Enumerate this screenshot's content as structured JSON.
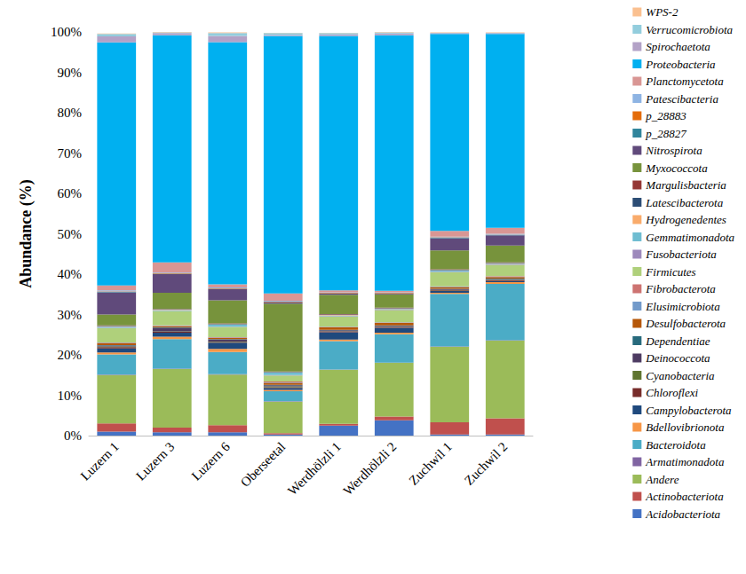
{
  "chart_data": {
    "type": "bar",
    "stacked": true,
    "grid": false,
    "legend": "right",
    "y_label": "Abundance (%)",
    "categories": [
      "Luzern 1",
      "Luzern 3",
      "Luzern 6",
      "Oberseetal",
      "Werdhölzli 1",
      "Werdhölzli 2",
      "Zuchwil 1",
      "Zuchwil 2"
    ],
    "ylim": [
      0,
      100
    ],
    "yticks": [
      {
        "value": 0,
        "label": "0%"
      },
      {
        "value": 10,
        "label": "10%"
      },
      {
        "value": 20,
        "label": "20%"
      },
      {
        "value": 30,
        "label": "30%"
      },
      {
        "value": 40,
        "label": "40%"
      },
      {
        "value": 50,
        "label": "50%"
      },
      {
        "value": 60,
        "label": "60%"
      },
      {
        "value": 70,
        "label": "70%"
      },
      {
        "value": 80,
        "label": "80%"
      },
      {
        "value": 90,
        "label": "90%"
      },
      {
        "value": 100,
        "label": "100%"
      }
    ],
    "series": [
      {
        "name": "Acidobacteriota",
        "color": "#4472C4",
        "values": [
          1.0,
          0.8,
          0.8,
          0.3,
          2.5,
          3.8,
          0.3,
          0.3
        ]
      },
      {
        "name": "Actinobacteriota",
        "color": "#C0504D",
        "values": [
          2.0,
          1.2,
          1.8,
          0.3,
          0.4,
          0.9,
          3.0,
          4.0
        ]
      },
      {
        "name": "Andere",
        "color": "#9BBB59",
        "values": [
          12.0,
          14.5,
          12.5,
          7.8,
          13.4,
          13.3,
          18.7,
          19.2
        ]
      },
      {
        "name": "Armatimonadota",
        "color": "#8064A2",
        "values": [
          0.1,
          0.1,
          0.1,
          0.1,
          0.1,
          0.1,
          0.1,
          0.1
        ]
      },
      {
        "name": "Bacteroidota",
        "color": "#4BACC6",
        "values": [
          5.0,
          7.3,
          5.5,
          2.5,
          7.0,
          7.0,
          13.0,
          14.0
        ]
      },
      {
        "name": "Bdellovibrionota",
        "color": "#F79646",
        "values": [
          0.5,
          0.6,
          0.8,
          0.3,
          0.4,
          0.4,
          0.3,
          0.4
        ]
      },
      {
        "name": "Campylobacterota",
        "color": "#1F497D",
        "values": [
          1.0,
          1.0,
          1.5,
          0.5,
          1.8,
          1.2,
          0.4,
          0.3
        ]
      },
      {
        "name": "Chloroflexi",
        "color": "#772C2A",
        "values": [
          0.3,
          0.2,
          0.2,
          0.2,
          0.2,
          0.2,
          0.2,
          0.2
        ]
      },
      {
        "name": "Cyanobacteria",
        "color": "#5F7530",
        "values": [
          0.2,
          0.1,
          0.1,
          0.2,
          0.1,
          0.1,
          0.1,
          0.1
        ]
      },
      {
        "name": "Deinococcota",
        "color": "#4D3B62",
        "values": [
          0.2,
          0.9,
          0.5,
          0.3,
          0.2,
          0.2,
          0.2,
          0.2
        ]
      },
      {
        "name": "Dependentiae",
        "color": "#276A7C",
        "values": [
          0.1,
          0.1,
          0.1,
          0.1,
          0.1,
          0.1,
          0.1,
          0.1
        ]
      },
      {
        "name": "Desulfobacterota",
        "color": "#B65708",
        "values": [
          0.5,
          0.3,
          0.3,
          0.5,
          0.6,
          0.6,
          0.4,
          0.4
        ]
      },
      {
        "name": "Elusimicrobiota",
        "color": "#729ACA",
        "values": [
          0.1,
          0.1,
          0.1,
          0.1,
          0.1,
          0.1,
          0.1,
          0.1
        ]
      },
      {
        "name": "Fibrobacterota",
        "color": "#CD7371",
        "values": [
          0.1,
          0.1,
          0.1,
          0.2,
          0.1,
          0.1,
          0.1,
          0.1
        ]
      },
      {
        "name": "Firmicutes",
        "color": "#AFD07B",
        "values": [
          3.5,
          3.5,
          2.5,
          1.5,
          2.5,
          3.0,
          3.5,
          2.8
        ]
      },
      {
        "name": "Fusobacteriota",
        "color": "#9D89BC",
        "values": [
          0.1,
          0.1,
          0.1,
          0.1,
          0.1,
          0.1,
          0.1,
          0.1
        ]
      },
      {
        "name": "Gemmatimonadota",
        "color": "#6FBDD1",
        "values": [
          0.3,
          0.2,
          0.5,
          0.6,
          0.2,
          0.2,
          0.3,
          0.2
        ]
      },
      {
        "name": "Hydrogenedentes",
        "color": "#F9AB6B",
        "values": [
          0.1,
          0.1,
          0.1,
          0.1,
          0.1,
          0.1,
          0.1,
          0.1
        ]
      },
      {
        "name": "Latescibacterota",
        "color": "#2C4D75",
        "values": [
          0.1,
          0.1,
          0.1,
          0.1,
          0.1,
          0.1,
          0.1,
          0.1
        ]
      },
      {
        "name": "Margulisbacteria",
        "color": "#943634",
        "values": [
          0.1,
          0.1,
          0.1,
          0.1,
          0.1,
          0.1,
          0.1,
          0.1
        ]
      },
      {
        "name": "Myxococcota",
        "color": "#77933C",
        "values": [
          2.7,
          4.0,
          5.7,
          16.8,
          4.8,
          3.3,
          4.7,
          4.2
        ]
      },
      {
        "name": "Nitrospirota",
        "color": "#604A7B",
        "values": [
          5.5,
          4.6,
          2.8,
          0.3,
          0.3,
          0.2,
          3.0,
          2.5
        ]
      },
      {
        "name": "p_28827",
        "color": "#31859C",
        "values": [
          0.1,
          0.1,
          0.1,
          0.1,
          0.1,
          0.1,
          0.1,
          0.1
        ]
      },
      {
        "name": "p_28883",
        "color": "#E46C0A",
        "values": [
          0.1,
          0.1,
          0.1,
          0.1,
          0.1,
          0.1,
          0.1,
          0.1
        ]
      },
      {
        "name": "Patescibacteria",
        "color": "#8EB4E3",
        "values": [
          0.3,
          0.2,
          0.2,
          0.2,
          0.1,
          0.1,
          0.2,
          0.2
        ]
      },
      {
        "name": "Planctomycetota",
        "color": "#D99694",
        "values": [
          1.2,
          2.5,
          0.8,
          1.8,
          0.5,
          0.4,
          1.4,
          1.5
        ]
      },
      {
        "name": "Proteobacteria",
        "color": "#00B0F0",
        "values": [
          60.2,
          56.3,
          60.0,
          63.8,
          63.0,
          63.3,
          48.8,
          48.0
        ]
      },
      {
        "name": "Spirochaetota",
        "color": "#B3A2C7",
        "values": [
          1.5,
          0.5,
          1.5,
          0.3,
          0.4,
          0.4,
          0.2,
          0.2
        ]
      },
      {
        "name": "Verrucomicrobiota",
        "color": "#93CDDD",
        "values": [
          0.6,
          0.2,
          0.7,
          0.4,
          0.3,
          0.3,
          0.1,
          0.1
        ]
      },
      {
        "name": "WPS-2",
        "color": "#FAC090",
        "values": [
          0.1,
          0.1,
          0.2,
          0.1,
          0.1,
          0.1,
          0.1,
          0.1
        ]
      }
    ]
  }
}
